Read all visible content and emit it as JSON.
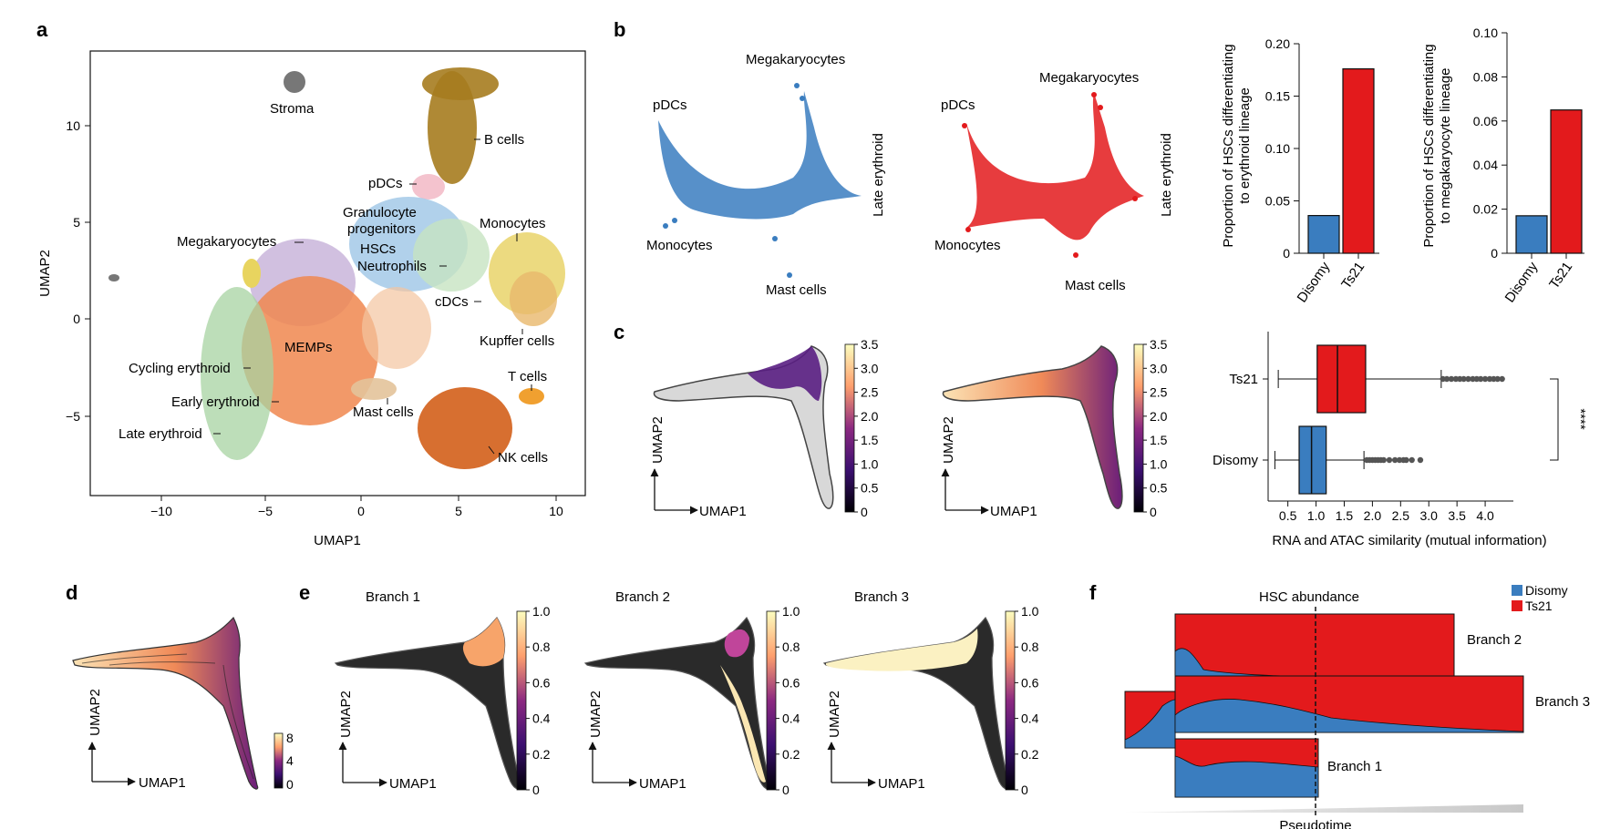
{
  "panel_labels": {
    "a": "a",
    "b": "b",
    "c": "c",
    "d": "d",
    "e": "e",
    "f": "f"
  },
  "colors": {
    "disomy": "#3a7dbf",
    "ts21": "#e31a1c",
    "axis": "#111111"
  },
  "panel_a": {
    "xlabel": "UMAP1",
    "ylabel": "UMAP2",
    "xticks": [
      "−10",
      "−5",
      "0",
      "5",
      "10"
    ],
    "yticks": [
      "10",
      "5",
      "0",
      "−5"
    ],
    "labels": {
      "stroma": "Stroma",
      "b_cells": "B cells",
      "pdcs": "pDCs",
      "granulocyte": "Granulocyte",
      "progenitors": "progenitors",
      "monocytes": "Monocytes",
      "megakaryocytes": "Megakaryocytes",
      "hscs": "HSCs",
      "neutrophils": "Neutrophils",
      "cdcs": "cDCs",
      "kupffer": "Kupffer cells",
      "memps": "MEMPs",
      "cycling": "Cycling erythroid",
      "early": "Early erythroid",
      "late": "Late erythroid",
      "mast": "Mast cells",
      "t_cells": "T cells",
      "nk": "NK cells"
    }
  },
  "panel_b": {
    "labels": {
      "megakaryocytes": "Megakaryocytes",
      "pdcs": "pDCs",
      "monocytes": "Monocytes",
      "mast": "Mast cells",
      "late": "Late erythroid"
    }
  },
  "chart_data": [
    {
      "type": "bar",
      "id": "erythroid",
      "categories": [
        "Disomy",
        "Ts21"
      ],
      "values": [
        0.036,
        0.176
      ],
      "ylabel": "Proportion of HSCs differentiating to erythroid lineage",
      "ylabel_lines": [
        "Proportion of HSCs differentiating",
        "to erythroid lineage"
      ],
      "ylim": [
        0,
        0.2
      ],
      "yticks": [
        "0",
        "0.05",
        "0.10",
        "0.15",
        "0.20"
      ]
    },
    {
      "type": "bar",
      "id": "megakaryocyte",
      "categories": [
        "Disomy",
        "Ts21"
      ],
      "values": [
        0.017,
        0.065
      ],
      "ylabel": "Proportion of HSCs differentiating to megakaryocyte lineage",
      "ylabel_lines": [
        "Proportion of HSCs differentiating",
        "to megakaryocyte lineage"
      ],
      "ylim": [
        0,
        0.1
      ],
      "yticks": [
        "0",
        "0.02",
        "0.04",
        "0.06",
        "0.08",
        "0.10"
      ]
    },
    {
      "type": "box",
      "id": "similarity",
      "categories": [
        "Ts21",
        "Disomy"
      ],
      "boxes": [
        {
          "name": "Ts21",
          "whisker_low": 0.33,
          "q1": 1.02,
          "median": 1.38,
          "q3": 1.88,
          "whisker_high": 3.22,
          "outliers": [
            3.25,
            3.32,
            3.4,
            3.48,
            3.55,
            3.62,
            3.7,
            3.78,
            3.85,
            3.92,
            4.0,
            4.08,
            4.15,
            4.22,
            4.3
          ]
        },
        {
          "name": "Disomy",
          "whisker_low": 0.27,
          "q1": 0.7,
          "median": 0.92,
          "q3": 1.18,
          "whisker_high": 1.85,
          "outliers": [
            1.9,
            1.95,
            2.0,
            2.05,
            2.1,
            2.15,
            2.2,
            2.3,
            2.4,
            2.48,
            2.55,
            2.6,
            2.7,
            2.85
          ]
        }
      ],
      "xlabel": "RNA and ATAC similarity (mutual information)",
      "xticks": [
        "0.5",
        "1.0",
        "1.5",
        "2.0",
        "2.5",
        "3.0",
        "3.5",
        "4.0"
      ],
      "xlim": [
        0.15,
        4.5
      ],
      "significance": "****"
    },
    {
      "type": "area",
      "id": "hsc_abundance",
      "title": "HSC abundance",
      "xlabel": "Pseudotime",
      "legend": [
        "Disomy",
        "Ts21"
      ],
      "branches": [
        "Branch 2",
        "Branch 3",
        "Branch 1"
      ]
    }
  ],
  "panel_c": {
    "xlabel": "UMAP1",
    "ylabel": "UMAP2",
    "cbar_ticks": [
      "3.5",
      "3.0",
      "2.5",
      "2.0",
      "1.5",
      "1.0",
      "0.5",
      "0"
    ]
  },
  "panel_d": {
    "xlabel": "UMAP1",
    "ylabel": "UMAP2",
    "cbar_ticks": [
      "8",
      "4",
      "0"
    ]
  },
  "panel_e": {
    "titles": [
      "Branch 1",
      "Branch 2",
      "Branch 3"
    ],
    "xlabel": "UMAP1",
    "ylabel": "UMAP2",
    "cbar_ticks": [
      "1.0",
      "0.8",
      "0.6",
      "0.4",
      "0.2",
      "0"
    ]
  }
}
